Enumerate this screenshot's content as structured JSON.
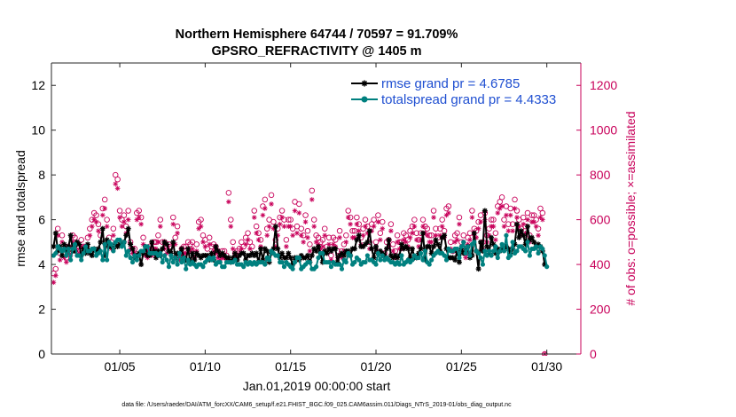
{
  "chart_data": {
    "type": "line",
    "title": "Northern Hemisphere 64744 / 70597 = 91.709%",
    "subtitle": "GPSRO_REFRACTIVITY @ 1405 m",
    "xlabel": "Jan.01,2019 00:00:00 start",
    "ylabel": "rmse and totalspread",
    "ylabel_right": "# of obs: o=possible; ×=assimilated",
    "footer": "data file: /Users/raeder/DAI/ATM_forcXX/CAM6_setup/f.e21.FHIST_BGC.f09_025.CAM6assim.011/Diags_NTrS_2019-01/obs_diag_output.nc",
    "x_range": [
      1.0,
      31.99
    ],
    "ylim": [
      0,
      13
    ],
    "ylim_right": [
      0,
      1300
    ],
    "x_ticks": [
      5,
      10,
      15,
      20,
      25,
      30
    ],
    "x_tick_labels": [
      "01/05",
      "01/10",
      "01/15",
      "01/20",
      "01/25",
      "01/30"
    ],
    "y_ticks": [
      0,
      2,
      4,
      6,
      8,
      10,
      12
    ],
    "y_tick_labels": [
      "0",
      "2",
      "4",
      "6",
      "8",
      "10",
      "12"
    ],
    "y2_ticks": [
      0,
      200,
      400,
      600,
      800,
      1000,
      1200
    ],
    "y2_tick_labels": [
      "0",
      "200",
      "400",
      "600",
      "800",
      "1000",
      "1200"
    ],
    "legend_position": "top-right",
    "series": [
      {
        "name": "rmse grand pr = 4.6785",
        "color": "#000000",
        "marker": "asterisk",
        "t0": 1.125,
        "dt": 0.125,
        "values": [
          4.8,
          5.4,
          4.6,
          4.8,
          4.4,
          4.9,
          4.6,
          4.8,
          5.3,
          4.6,
          4.6,
          5.0,
          4.9,
          4.4,
          4.7,
          4.5,
          4.9,
          4.5,
          4.4,
          4.7,
          4.6,
          4.7,
          5.0,
          5.6,
          4.4,
          5.1,
          4.8,
          4.8,
          4.7,
          4.9,
          4.8,
          4.9,
          4.9,
          5.0,
          5.3,
          5.6,
          4.9,
          4.7,
          4.3,
          4.4,
          4.5,
          4.0,
          4.5,
          4.8,
          4.4,
          4.4,
          5.0,
          4.6,
          4.3,
          4.6,
          4.4,
          4.7,
          5.0,
          4.9,
          4.6,
          4.5,
          5.0,
          4.3,
          4.5,
          4.5,
          4.7,
          4.3,
          4.2,
          4.7,
          4.1,
          4.5,
          4.2,
          4.5,
          4.4,
          4.3,
          4.4,
          4.4,
          4.4,
          4.2,
          4.5,
          4.2,
          4.8,
          4.6,
          4.4,
          4.5,
          4.4,
          4.3,
          4.3,
          4.1,
          4.3,
          4.5,
          4.2,
          4.4,
          4.5,
          4.5,
          4.2,
          4.4,
          4.4,
          4.5,
          4.4,
          4.5,
          4.1,
          4.7,
          4.2,
          4.7,
          4.6,
          4.1,
          4.5,
          4.7,
          5.7,
          4.7,
          4.3,
          4.5,
          4.3,
          4.3,
          4.5,
          4.3,
          4.0,
          4.3,
          4.3,
          4.2,
          4.4,
          4.3,
          4.3,
          4.4,
          4.1,
          4.4,
          4.7,
          4.6,
          4.8,
          4.5,
          4.1,
          4.6,
          4.5,
          4.7,
          4.6,
          4.7,
          4.7,
          4.1,
          4.4,
          4.5,
          4.4,
          4.6,
          4.6,
          4.4,
          4.7,
          4.7,
          5.1,
          5.3,
          4.8,
          4.8,
          4.9,
          5.0,
          5.5,
          4.7,
          4.3,
          4.8,
          4.5,
          4.6,
          4.5,
          4.4,
          4.7,
          5.1,
          4.4,
          4.3,
          4.4,
          4.3,
          4.4,
          4.9,
          4.7,
          4.8,
          4.7,
          4.3,
          4.7,
          4.3,
          4.3,
          4.5,
          4.7,
          5.4,
          4.2,
          4.8,
          4.8,
          4.5,
          4.8,
          5.1,
          4.9,
          4.6,
          5.2,
          5.3,
          4.7,
          4.3,
          4.3,
          4.3,
          4.2,
          4.6,
          4.1,
          4.7,
          4.5,
          4.6,
          4.8,
          4.3,
          4.4,
          5.4,
          4.6,
          3.8,
          5.0,
          4.6,
          6.4,
          4.8,
          4.5,
          5.2,
          4.9,
          4.5,
          4.7,
          4.6,
          4.7,
          4.7,
          4.8,
          4.7,
          4.5,
          4.7,
          4.9,
          5.8,
          5.2,
          5.5,
          5.3,
          4.9,
          5.7,
          5.1,
          5.2,
          5.0,
          4.8,
          4.9,
          4.8,
          4.6,
          4.0
        ]
      },
      {
        "name": "totalspread grand pr = 4.4333",
        "color": "#00807f",
        "marker": "dot",
        "t0": 1.125,
        "dt": 0.125,
        "values": [
          4.4,
          4.5,
          4.8,
          4.7,
          4.6,
          4.7,
          4.4,
          4.7,
          4.2,
          4.7,
          4.9,
          4.4,
          4.4,
          4.2,
          4.5,
          4.8,
          4.6,
          4.6,
          4.7,
          4.7,
          4.4,
          4.5,
          4.6,
          4.2,
          4.9,
          4.2,
          5.0,
          4.9,
          4.6,
          5.0,
          5.1,
          5.1,
          4.8,
          5.0,
          4.4,
          4.6,
          4.3,
          4.1,
          4.4,
          4.2,
          4.4,
          4.6,
          4.6,
          4.8,
          4.8,
          4.5,
          4.5,
          4.5,
          4.5,
          4.4,
          4.5,
          4.1,
          4.4,
          4.2,
          3.9,
          4.4,
          4.1,
          4.3,
          4.0,
          4.5,
          4.1,
          4.3,
          3.8,
          4.2,
          4.0,
          4.1,
          4.0,
          3.9,
          4.0,
          4.0,
          3.9,
          4.1,
          4.2,
          4.3,
          4.2,
          4.3,
          4.0,
          4.1,
          4.1,
          3.9,
          3.9,
          4.1,
          4.1,
          4.1,
          4.1,
          4.2,
          4.0,
          4.0,
          4.0,
          3.9,
          4.1,
          4.0,
          4.1,
          4.0,
          4.1,
          4.0,
          4.1,
          4.1,
          4.1,
          4.0,
          4.3,
          4.2,
          4.6,
          4.5,
          4.4,
          4.4,
          4.1,
          4.1,
          3.9,
          4.1,
          4.0,
          3.9,
          3.8,
          4.1,
          4.3,
          4.3,
          3.8,
          3.9,
          4.0,
          4.1,
          4.1,
          3.8,
          3.8,
          3.9,
          4.3,
          4.5,
          4.5,
          4.1,
          4.1,
          4.1,
          3.9,
          4.1,
          4.0,
          4.0,
          4.0,
          3.8,
          4.2,
          4.1,
          4.5,
          4.4,
          4.0,
          4.1,
          4.3,
          4.2,
          4.0,
          4.1,
          4.1,
          4.4,
          4.2,
          4.2,
          4.1,
          4.0,
          4.5,
          4.2,
          4.4,
          4.2,
          4.3,
          4.2,
          4.1,
          4.1,
          4.0,
          4.1,
          4.0,
          4.4,
          4.0,
          4.1,
          4.2,
          4.1,
          4.2,
          4.4,
          4.3,
          4.3,
          4.5,
          4.2,
          4.6,
          4.1,
          4.0,
          4.2,
          4.4,
          4.5,
          4.6,
          4.5,
          4.5,
          4.4,
          4.2,
          4.7,
          4.6,
          4.6,
          4.7,
          4.7,
          4.3,
          4.8,
          5.0,
          4.5,
          4.8,
          4.4,
          4.9,
          5.0,
          4.6,
          4.5,
          4.3,
          4.0,
          4.6,
          4.4,
          4.6,
          4.4,
          4.6,
          4.8,
          4.3,
          4.6,
          4.9,
          4.6,
          5.3,
          4.3,
          4.4,
          5.0,
          4.5,
          4.6,
          4.8,
          4.8,
          4.7,
          4.6,
          5.0,
          4.4,
          4.7,
          4.7,
          4.8,
          4.5,
          4.8,
          4.7,
          4.4,
          3.9
        ]
      },
      {
        "name": "possible",
        "axis": "right",
        "color": "#c8005a",
        "marker": "circle",
        "t0": 1.125,
        "dt": 0.125,
        "values": [
          360,
          380,
          560,
          450,
          530,
          450,
          430,
          480,
          470,
          530,
          520,
          480,
          480,
          510,
          480,
          480,
          520,
          560,
          600,
          630,
          620,
          580,
          530,
          650,
          690,
          600,
          520,
          500,
          560,
          800,
          780,
          640,
          600,
          620,
          570,
          640,
          500,
          470,
          470,
          630,
          640,
          610,
          520,
          460,
          450,
          480,
          470,
          500,
          500,
          530,
          600,
          500,
          500,
          480,
          490,
          480,
          610,
          520,
          570,
          440,
          470,
          480,
          480,
          500,
          490,
          500,
          450,
          490,
          590,
          600,
          530,
          510,
          470,
          520,
          480,
          490,
          480,
          460,
          440,
          460,
          460,
          440,
          720,
          600,
          500,
          450,
          460,
          470,
          500,
          480,
          520,
          540,
          500,
          480,
          640,
          570,
          540,
          510,
          660,
          690,
          560,
          600,
          710,
          590,
          510,
          560,
          610,
          640,
          600,
          510,
          600,
          600,
          560,
          680,
          570,
          670,
          560,
          530,
          620,
          550,
          490,
          730,
          600,
          530,
          520,
          500,
          510,
          560,
          480,
          520,
          440,
          520,
          510,
          460,
          550,
          460,
          490,
          530,
          640,
          610,
          550,
          550,
          610,
          580,
          520,
          560,
          600,
          570,
          500,
          580,
          600,
          500,
          620,
          540,
          590,
          450,
          500,
          510,
          580,
          490,
          460,
          530,
          500,
          500,
          540,
          530,
          510,
          550,
          570,
          600,
          540,
          510,
          540,
          600,
          570,
          560,
          530,
          530,
          640,
          560,
          520,
          560,
          600,
          550,
          650,
          660,
          500,
          460,
          530,
          540,
          610,
          500,
          530,
          450,
          520,
          540,
          640,
          560,
          550,
          590,
          620,
          500,
          630,
          530,
          560,
          600,
          600,
          540,
          660,
          680,
          700,
          600,
          660,
          580,
          650,
          580,
          690,
          640,
          600,
          560,
          610,
          570,
          630,
          530,
          620,
          620,
          600,
          560,
          650,
          630,
          0
        ]
      },
      {
        "name": "assimilated",
        "axis": "right",
        "color": "#c8005a",
        "marker": "asterisk",
        "t0": 1.125,
        "dt": 0.125,
        "values": [
          320,
          350,
          530,
          420,
          500,
          430,
          410,
          450,
          440,
          500,
          490,
          460,
          450,
          480,
          450,
          450,
          490,
          530,
          570,
          600,
          590,
          550,
          500,
          620,
          650,
          570,
          490,
          470,
          530,
          760,
          740,
          610,
          570,
          590,
          540,
          600,
          470,
          450,
          450,
          600,
          610,
          580,
          490,
          440,
          430,
          450,
          440,
          470,
          470,
          500,
          570,
          470,
          470,
          450,
          460,
          450,
          580,
          490,
          540,
          420,
          440,
          450,
          450,
          470,
          460,
          470,
          430,
          460,
          560,
          570,
          500,
          480,
          440,
          490,
          450,
          460,
          450,
          430,
          420,
          430,
          430,
          420,
          680,
          570,
          470,
          430,
          430,
          440,
          470,
          450,
          490,
          510,
          470,
          450,
          610,
          540,
          510,
          480,
          620,
          650,
          530,
          570,
          670,
          560,
          480,
          530,
          580,
          610,
          570,
          480,
          570,
          570,
          530,
          640,
          540,
          630,
          530,
          500,
          590,
          520,
          460,
          690,
          570,
          500,
          490,
          470,
          480,
          530,
          450,
          490,
          420,
          490,
          480,
          430,
          520,
          430,
          460,
          500,
          610,
          580,
          520,
          520,
          580,
          550,
          490,
          530,
          570,
          540,
          470,
          550,
          570,
          470,
          590,
          510,
          560,
          430,
          470,
          480,
          550,
          460,
          430,
          500,
          470,
          470,
          510,
          500,
          480,
          520,
          540,
          570,
          510,
          480,
          510,
          570,
          540,
          530,
          500,
          500,
          610,
          530,
          490,
          530,
          570,
          520,
          620,
          630,
          470,
          430,
          500,
          510,
          580,
          470,
          500,
          430,
          490,
          510,
          610,
          530,
          520,
          560,
          590,
          470,
          600,
          500,
          530,
          570,
          570,
          510,
          630,
          650,
          660,
          570,
          620,
          550,
          620,
          550,
          650,
          610,
          570,
          530,
          580,
          540,
          600,
          500,
          590,
          590,
          570,
          530,
          610,
          600,
          0
        ]
      }
    ]
  }
}
